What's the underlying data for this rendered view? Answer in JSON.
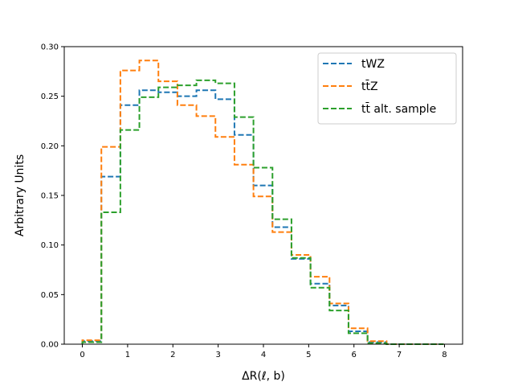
{
  "chart_data": {
    "type": "histogram-step",
    "xlabel": "ΔR(ℓ, b)",
    "ylabel": "Arbitrary Units",
    "xlim": [
      -0.4,
      8.4
    ],
    "ylim": [
      0,
      0.3
    ],
    "xticks": [
      "0",
      "1",
      "2",
      "3",
      "4",
      "5",
      "6",
      "7",
      "8"
    ],
    "yticks": [
      "0.00",
      "0.05",
      "0.10",
      "0.15",
      "0.20",
      "0.25",
      "0.30"
    ],
    "grid": false,
    "legend_position": "top-right",
    "bin_edges": [
      0,
      0.42,
      0.84,
      1.26,
      1.68,
      2.1,
      2.52,
      2.94,
      3.36,
      3.78,
      4.2,
      4.62,
      5.04,
      5.46,
      5.88,
      6.3,
      6.72,
      7.14,
      7.56,
      7.98
    ],
    "series": [
      {
        "name": "tWZ",
        "color": "#1f77b4",
        "values": [
          0.003,
          0.169,
          0.241,
          0.256,
          0.254,
          0.25,
          0.256,
          0.247,
          0.211,
          0.16,
          0.118,
          0.086,
          0.061,
          0.039,
          0.013,
          0.002,
          0.0,
          0.0,
          0.0
        ]
      },
      {
        "name": "tt̄Z",
        "color": "#ff7f0e",
        "values": [
          0.004,
          0.199,
          0.276,
          0.286,
          0.265,
          0.241,
          0.23,
          0.209,
          0.181,
          0.149,
          0.113,
          0.09,
          0.068,
          0.041,
          0.016,
          0.003,
          0.0,
          0.0,
          0.0
        ]
      },
      {
        "name": "tt̄ alt. sample",
        "color": "#2ca02c",
        "values": [
          0.002,
          0.133,
          0.216,
          0.249,
          0.259,
          0.261,
          0.266,
          0.263,
          0.229,
          0.178,
          0.126,
          0.087,
          0.057,
          0.034,
          0.011,
          0.001,
          0.0,
          0.0,
          0.0
        ]
      }
    ]
  }
}
